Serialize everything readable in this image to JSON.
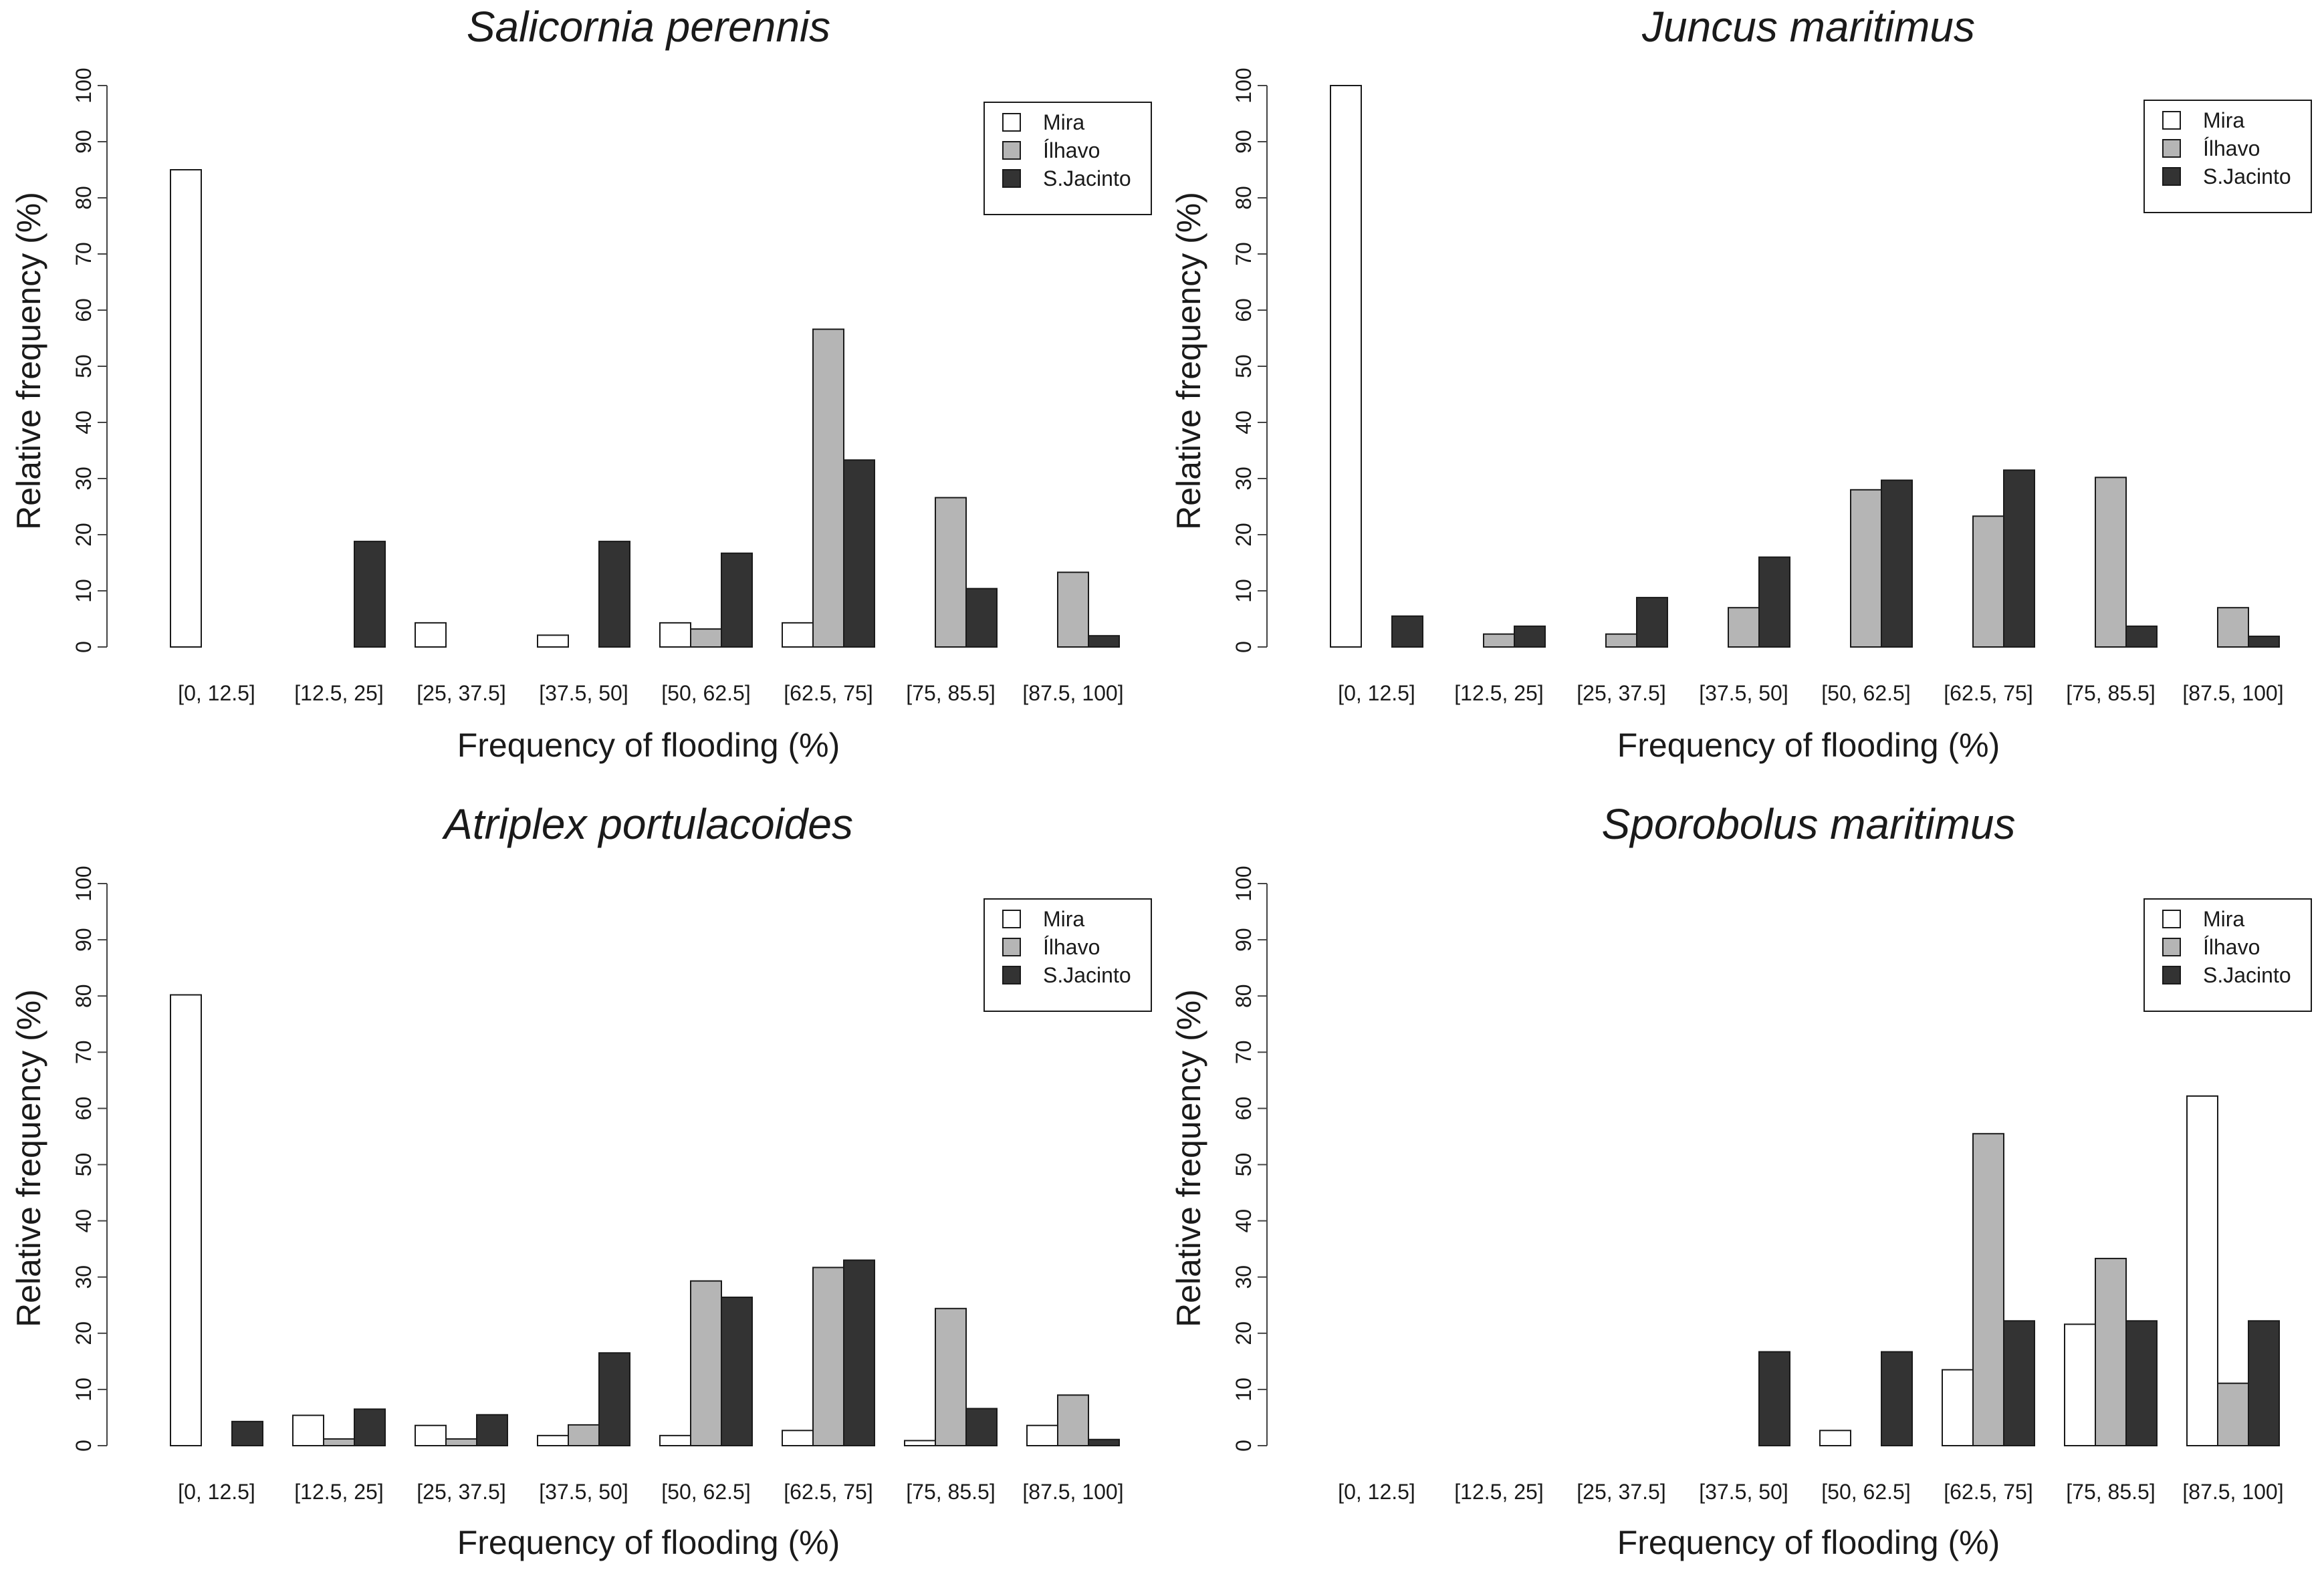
{
  "figure": {
    "x_axis_label": "Frequency of flooding (%)",
    "y_axis_label": "Relative frequency (%)"
  },
  "chart_data": [
    {
      "type": "bar",
      "title": "Salicornia perennis",
      "xlabel": "Frequency of flooding (%)",
      "ylabel": "Relative frequency (%)",
      "ylim": [
        0,
        100
      ],
      "yticks": [
        0,
        10,
        20,
        30,
        40,
        50,
        60,
        70,
        80,
        90,
        100
      ],
      "categories": [
        "[0, 12.5]",
        "[12.5, 25]",
        "[25, 37.5]",
        "[37.5, 50]",
        "[50, 62.5]",
        "[62.5, 75]",
        "[75, 85.5]",
        "[87.5, 100]"
      ],
      "legend": "top-right",
      "series": [
        {
          "name": "Mira",
          "color": "#ffffff",
          "values": [
            85,
            0,
            4.3,
            2.1,
            4.3,
            4.3,
            0,
            0
          ]
        },
        {
          "name": "Ílhavo",
          "color": "#b5b5b5",
          "values": [
            0,
            0,
            0,
            0,
            3.2,
            56.6,
            26.6,
            13.3
          ]
        },
        {
          "name": "S.Jacinto",
          "color": "#333333",
          "values": [
            0,
            18.8,
            0,
            18.8,
            16.7,
            33.3,
            10.4,
            2
          ]
        }
      ]
    },
    {
      "type": "bar",
      "title": "Juncus maritimus",
      "xlabel": "Frequency of flooding (%)",
      "ylabel": "Relative frequency (%)",
      "ylim": [
        0,
        100
      ],
      "yticks": [
        0,
        10,
        20,
        30,
        40,
        50,
        60,
        70,
        80,
        90,
        100
      ],
      "categories": [
        "[0, 12.5]",
        "[12.5, 25]",
        "[25, 37.5]",
        "[37.5, 50]",
        "[50, 62.5]",
        "[62.5, 75]",
        "[75, 85.5]",
        "[87.5, 100]"
      ],
      "legend": "top-right",
      "series": [
        {
          "name": "Mira",
          "color": "#ffffff",
          "values": [
            100,
            0,
            0,
            0,
            0,
            0,
            0,
            0
          ]
        },
        {
          "name": "Ílhavo",
          "color": "#b5b5b5",
          "values": [
            0,
            2.3,
            2.3,
            7,
            28,
            23.3,
            30.2,
            7
          ]
        },
        {
          "name": "S.Jacinto",
          "color": "#333333",
          "values": [
            5.5,
            3.7,
            8.8,
            16,
            29.7,
            31.5,
            3.7,
            1.9
          ]
        }
      ]
    },
    {
      "type": "bar",
      "title": "Atriplex portulacoides",
      "xlabel": "Frequency of flooding (%)",
      "ylabel": "Relative frequency (%)",
      "ylim": [
        0,
        100
      ],
      "yticks": [
        0,
        10,
        20,
        30,
        40,
        50,
        60,
        70,
        80,
        90,
        100
      ],
      "categories": [
        "[0, 12.5]",
        "[12.5, 25]",
        "[25, 37.5]",
        "[37.5, 50]",
        "[50, 62.5]",
        "[62.5, 75]",
        "[75, 85.5]",
        "[87.5, 100]"
      ],
      "legend": "top-right",
      "series": [
        {
          "name": "Mira",
          "color": "#ffffff",
          "values": [
            80.2,
            5.4,
            3.6,
            1.8,
            1.8,
            2.7,
            0.9,
            3.6
          ]
        },
        {
          "name": "Ílhavo",
          "color": "#b5b5b5",
          "values": [
            0,
            1.2,
            1.2,
            3.7,
            29.3,
            31.7,
            24.4,
            9
          ]
        },
        {
          "name": "S.Jacinto",
          "color": "#333333",
          "values": [
            4.3,
            6.5,
            5.5,
            16.5,
            26.4,
            33,
            6.6,
            1.1
          ]
        }
      ]
    },
    {
      "type": "bar",
      "title": "Sporobolus maritimus",
      "xlabel": "Frequency of flooding (%)",
      "ylabel": "Relative frequency (%)",
      "ylim": [
        0,
        100
      ],
      "yticks": [
        0,
        10,
        20,
        30,
        40,
        50,
        60,
        70,
        80,
        90,
        100
      ],
      "categories": [
        "[0, 12.5]",
        "[12.5, 25]",
        "[25, 37.5]",
        "[37.5, 50]",
        "[50, 62.5]",
        "[62.5, 75]",
        "[75, 85.5]",
        "[87.5, 100]"
      ],
      "legend": "top-right",
      "series": [
        {
          "name": "Mira",
          "color": "#ffffff",
          "values": [
            0,
            0,
            0,
            0,
            2.7,
            13.5,
            21.6,
            62.2
          ]
        },
        {
          "name": "Ílhavo",
          "color": "#b5b5b5",
          "values": [
            0,
            0,
            0,
            0,
            0,
            55.5,
            33.3,
            11.1
          ]
        },
        {
          "name": "S.Jacinto",
          "color": "#333333",
          "values": [
            0,
            0,
            0,
            16.7,
            16.7,
            22.2,
            22.2,
            22.2
          ]
        }
      ]
    }
  ]
}
